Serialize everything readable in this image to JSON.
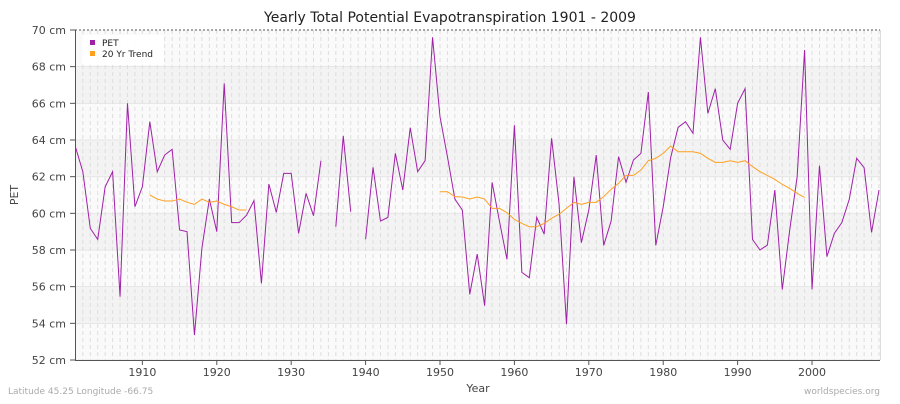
{
  "chart_data": {
    "type": "line",
    "title": "Yearly Total Potential Evapotranspiration 1901 - 2009",
    "xlabel": "Year",
    "ylabel": "PET",
    "xlim": [
      1901,
      2009
    ],
    "ylim": [
      52,
      70
    ],
    "y_unit": "cm",
    "y_ticks": [
      "52 cm",
      "54 cm",
      "56 cm",
      "58 cm",
      "60 cm",
      "62 cm",
      "64 cm",
      "66 cm",
      "68 cm",
      "70 cm"
    ],
    "x_ticks": [
      "1910",
      "1920",
      "1930",
      "1940",
      "1950",
      "1960",
      "1970",
      "1980",
      "1990",
      "2000"
    ],
    "grid": true,
    "legend_position": "top-left",
    "series": [
      {
        "name": "PET",
        "color": "#a020a8",
        "start_year": 1901,
        "values": [
          63.63,
          62.27,
          59.18,
          58.58,
          61.45,
          62.27,
          55.45,
          66.0,
          60.36,
          61.45,
          65.0,
          62.27,
          63.18,
          63.49,
          59.09,
          59.0,
          53.36,
          58.09,
          60.78,
          59.0,
          67.09,
          59.49,
          59.49,
          59.9,
          60.69,
          56.18,
          61.6,
          60.05,
          62.18,
          62.18,
          58.91,
          61.09,
          59.87,
          62.87,
          null,
          59.27,
          64.22,
          60.09,
          null,
          58.58,
          62.51,
          59.58,
          59.78,
          63.27,
          61.27,
          64.67,
          62.27,
          62.87,
          69.6,
          65.27,
          63.09,
          60.78,
          60.18,
          55.58,
          57.78,
          54.96,
          61.69,
          59.55,
          57.49,
          64.8,
          56.78,
          56.49,
          59.78,
          58.87,
          64.09,
          60.51,
          53.96,
          62.0,
          58.4,
          60.18,
          63.18,
          58.25,
          59.58,
          63.09,
          61.69,
          62.91,
          63.27,
          66.62,
          58.25,
          60.36,
          63.04,
          64.69,
          65.0,
          64.36,
          69.6,
          65.45,
          66.8,
          64.0,
          63.49,
          66.0,
          66.8,
          58.58,
          58.0,
          58.27,
          61.27,
          55.85,
          59.09,
          62.0,
          68.91,
          55.85,
          62.6,
          57.64,
          58.91,
          59.49,
          60.76,
          63.0,
          62.49,
          58.96,
          61.27
        ]
      },
      {
        "name": "20 Yr Trend",
        "color": "#ffa020",
        "start_year": 1901,
        "values": [
          null,
          null,
          null,
          null,
          null,
          null,
          null,
          null,
          null,
          null,
          61.0,
          60.78,
          60.67,
          60.67,
          60.78,
          60.6,
          60.49,
          60.78,
          60.6,
          60.67,
          60.49,
          60.36,
          60.18,
          60.18,
          null,
          null,
          null,
          null,
          null,
          null,
          null,
          null,
          null,
          null,
          null,
          null,
          null,
          null,
          null,
          null,
          null,
          null,
          null,
          null,
          null,
          null,
          null,
          null,
          null,
          61.18,
          61.18,
          60.91,
          60.89,
          60.78,
          60.89,
          60.78,
          60.27,
          60.27,
          60.04,
          59.67,
          59.45,
          59.27,
          59.27,
          59.45,
          59.73,
          59.95,
          60.27,
          60.6,
          60.49,
          60.6,
          60.6,
          60.91,
          61.31,
          61.64,
          62.07,
          62.07,
          62.36,
          62.87,
          63.0,
          63.27,
          63.67,
          63.36,
          63.36,
          63.36,
          63.27,
          63.0,
          62.78,
          62.78,
          62.87,
          62.78,
          62.87,
          62.55,
          62.27,
          62.07,
          61.85,
          61.58,
          61.36,
          61.09,
          60.87
        ]
      }
    ]
  },
  "footer": {
    "location": "Latitude 45.25 Longitude -66.75",
    "source": "worldspecies.org"
  }
}
